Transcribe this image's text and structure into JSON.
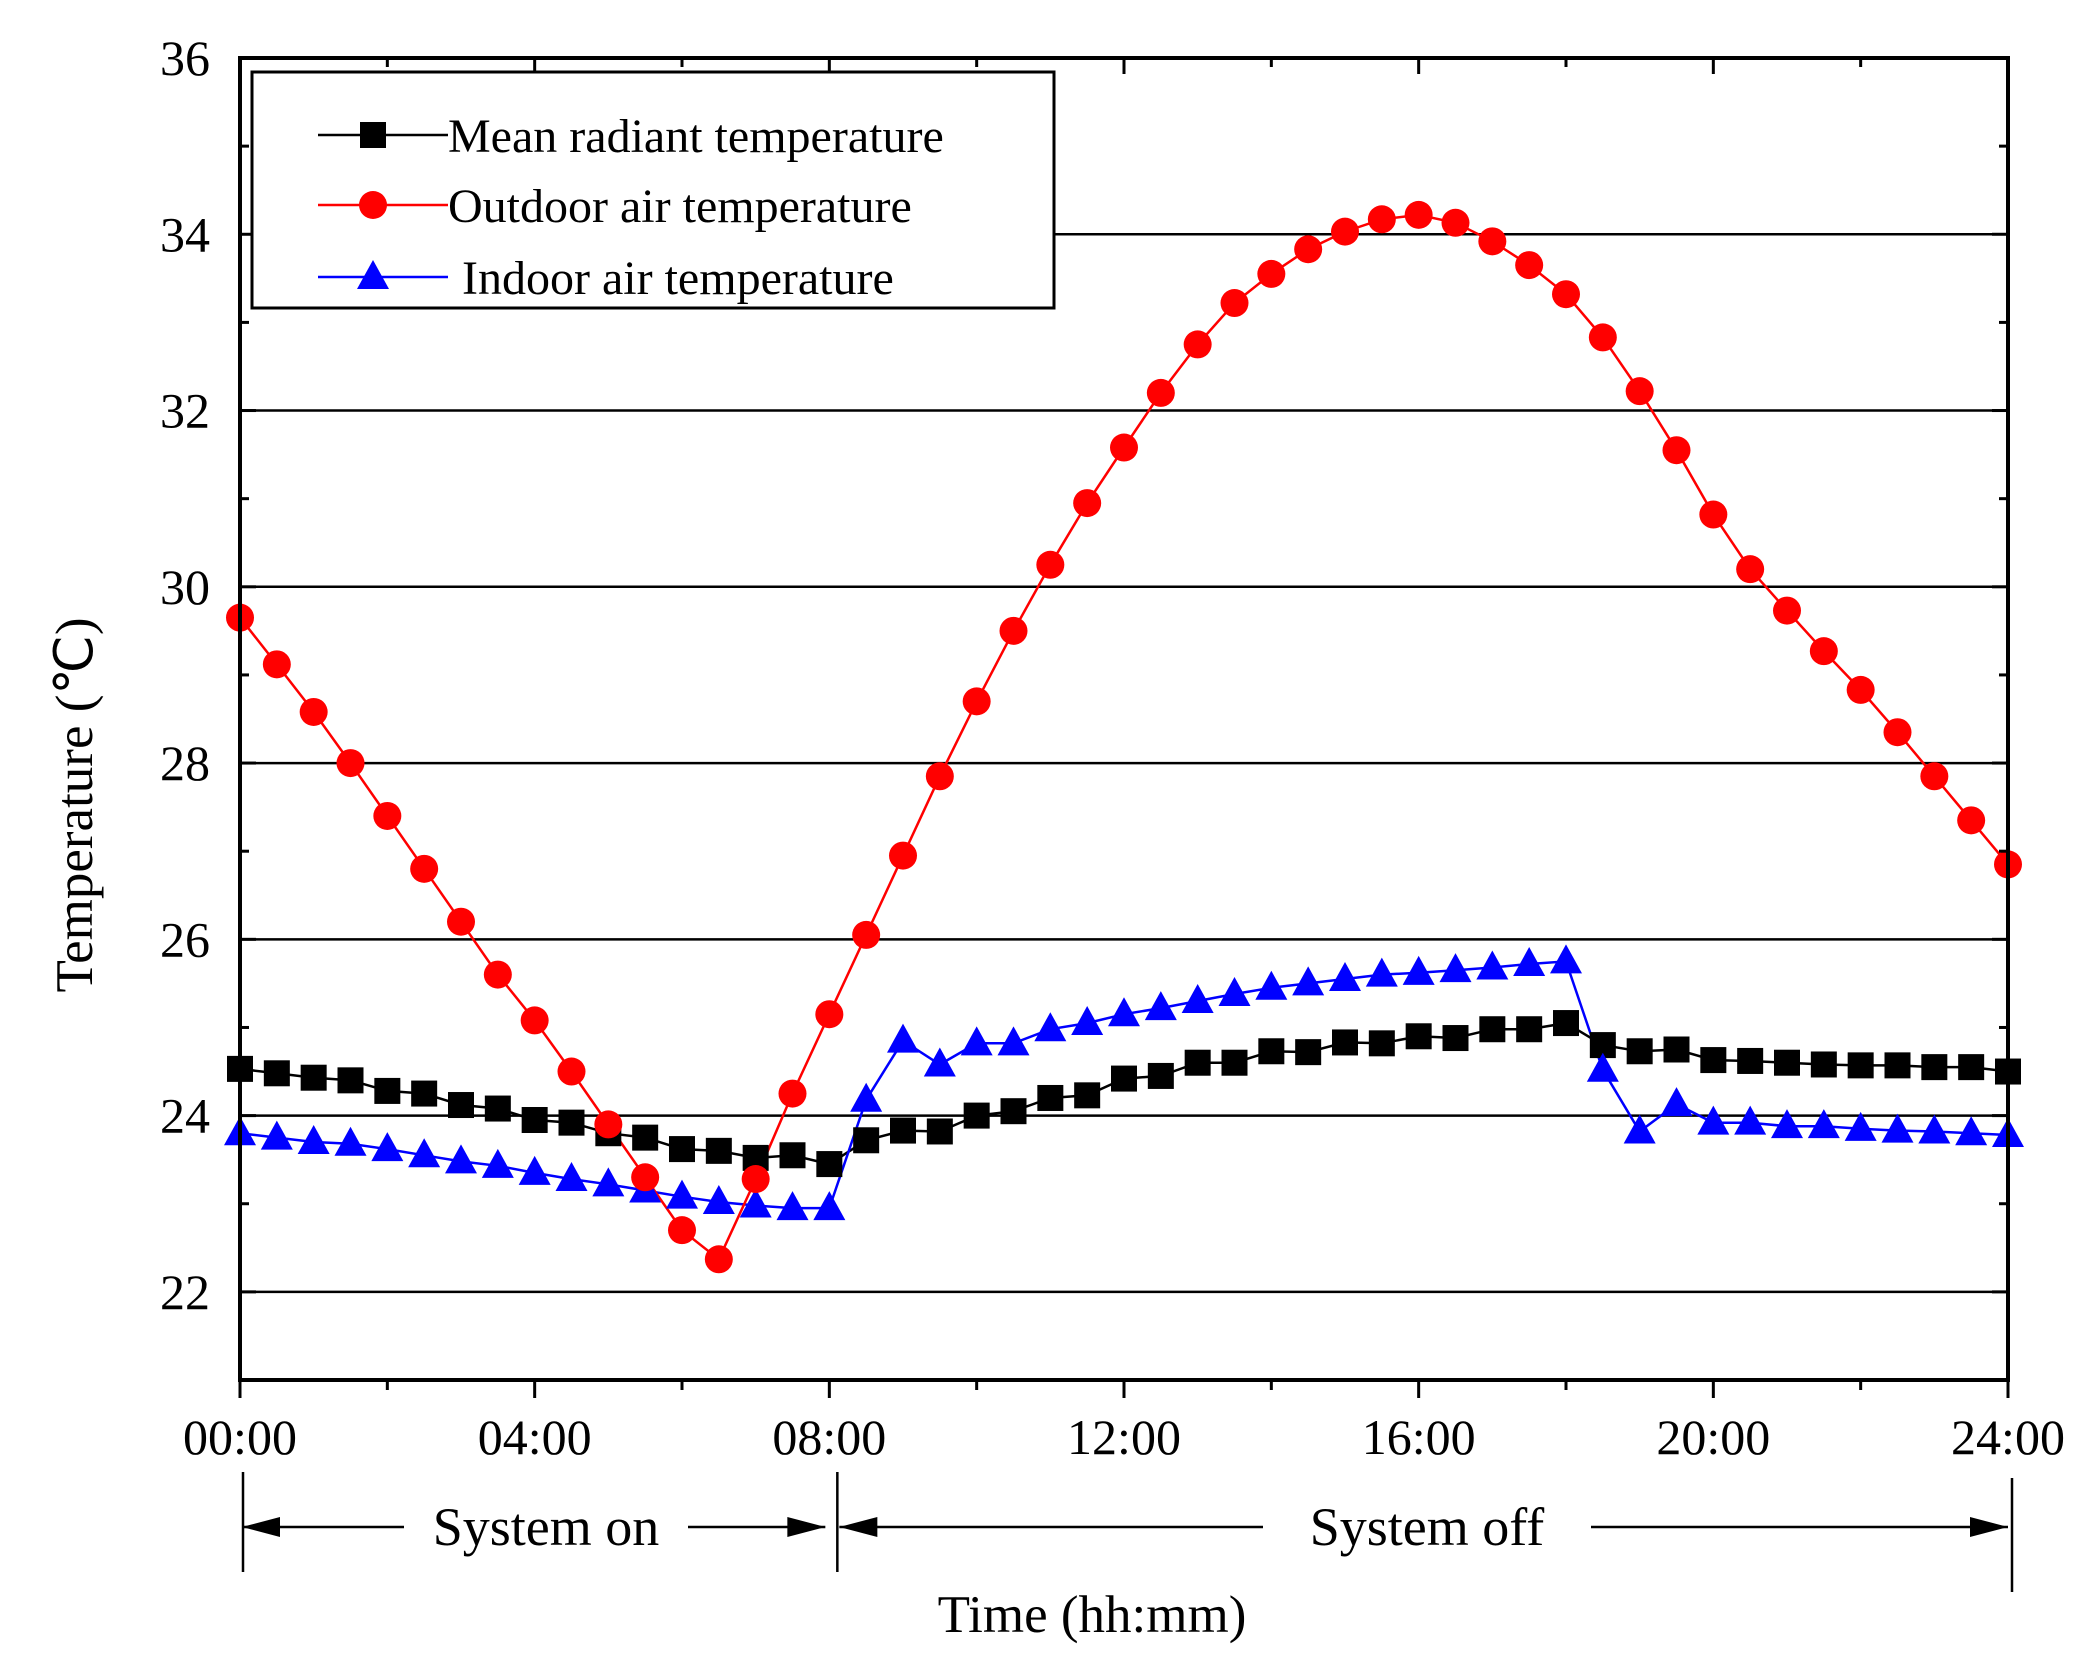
{
  "chart_data": {
    "type": "line",
    "xlabel": "Time (hh:mm)",
    "ylabel": "Temperature (℃)",
    "xlim": [
      0,
      24
    ],
    "ylim": [
      21,
      36
    ],
    "xticks": [
      {
        "value": 0,
        "label": "00:00"
      },
      {
        "value": 4,
        "label": "04:00"
      },
      {
        "value": 8,
        "label": "08:00"
      },
      {
        "value": 12,
        "label": "12:00"
      },
      {
        "value": 16,
        "label": "16:00"
      },
      {
        "value": 20,
        "label": "20:00"
      },
      {
        "value": 24,
        "label": "24:00"
      }
    ],
    "yticks": [
      {
        "value": 22,
        "label": "22"
      },
      {
        "value": 24,
        "label": "24"
      },
      {
        "value": 26,
        "label": "26"
      },
      {
        "value": 28,
        "label": "28"
      },
      {
        "value": 30,
        "label": "30"
      },
      {
        "value": 32,
        "label": "32"
      },
      {
        "value": 34,
        "label": "34"
      },
      {
        "value": 36,
        "label": "36"
      }
    ],
    "grid": "horizontal",
    "legend_position": "top-left",
    "x": [
      0,
      0.5,
      1,
      1.5,
      2,
      2.5,
      3,
      3.5,
      4,
      4.5,
      5,
      5.5,
      6,
      6.5,
      7,
      7.5,
      8,
      8.5,
      9,
      9.5,
      10,
      10.5,
      11,
      11.5,
      12,
      12.5,
      13,
      13.5,
      14,
      14.5,
      15,
      15.5,
      16,
      16.5,
      17,
      17.5,
      18,
      18.5,
      19,
      19.5,
      20,
      20.5,
      21,
      21.5,
      22,
      22.5,
      23,
      23.5,
      24
    ],
    "series": [
      {
        "name": "Mean radiant temperature",
        "color": "#000000",
        "marker": "square",
        "values": [
          24.53,
          24.48,
          24.43,
          24.4,
          24.28,
          24.25,
          24.12,
          24.08,
          23.95,
          23.92,
          23.8,
          23.75,
          23.62,
          23.6,
          23.52,
          23.55,
          23.45,
          23.72,
          23.83,
          23.82,
          24.0,
          24.05,
          24.2,
          24.23,
          24.42,
          24.45,
          24.6,
          24.6,
          24.73,
          24.72,
          24.83,
          24.82,
          24.9,
          24.88,
          24.98,
          24.98,
          25.05,
          24.8,
          24.73,
          24.75,
          24.63,
          24.62,
          24.6,
          24.58,
          24.57,
          24.57,
          24.55,
          24.55,
          24.5
        ]
      },
      {
        "name": "Outdoor air temperature",
        "color": "#ff0000",
        "marker": "circle",
        "values": [
          29.65,
          29.12,
          28.58,
          28.0,
          27.4,
          26.8,
          26.2,
          25.6,
          25.08,
          24.5,
          23.9,
          23.3,
          22.7,
          22.37,
          23.28,
          24.25,
          25.15,
          26.05,
          26.95,
          27.85,
          28.7,
          29.5,
          30.25,
          30.95,
          31.58,
          32.2,
          32.75,
          33.22,
          33.55,
          33.83,
          34.03,
          34.17,
          34.22,
          34.13,
          33.92,
          33.65,
          33.32,
          32.83,
          32.22,
          31.55,
          30.82,
          30.2,
          29.73,
          29.27,
          28.83,
          28.35,
          27.85,
          27.35,
          26.85
        ]
      },
      {
        "name": "Indoor air temperature",
        "color": "#0000ff",
        "marker": "triangle",
        "values": [
          23.8,
          23.75,
          23.7,
          23.68,
          23.62,
          23.55,
          23.48,
          23.43,
          23.35,
          23.28,
          23.22,
          23.15,
          23.08,
          23.02,
          22.98,
          22.95,
          22.95,
          24.18,
          24.85,
          24.58,
          24.82,
          24.82,
          24.98,
          25.05,
          25.15,
          25.22,
          25.3,
          25.38,
          25.45,
          25.5,
          25.55,
          25.6,
          25.62,
          25.65,
          25.68,
          25.72,
          25.75,
          24.52,
          23.82,
          24.13,
          23.92,
          23.92,
          23.88,
          23.88,
          23.85,
          23.83,
          23.82,
          23.8,
          23.78
        ]
      }
    ],
    "annotations": [
      {
        "text": "System on",
        "from": 0,
        "to": 8
      },
      {
        "text": "System off",
        "from": 8,
        "to": 24
      }
    ]
  }
}
